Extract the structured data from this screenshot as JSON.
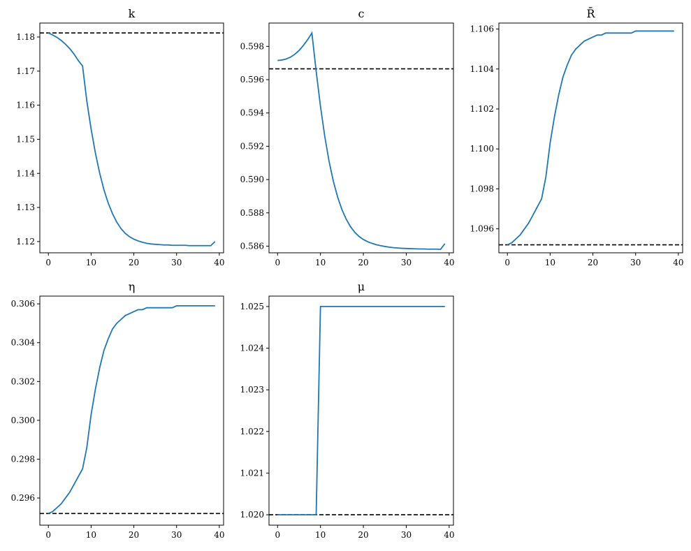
{
  "chart_data": [
    {
      "type": "line",
      "title": "k",
      "xlim": [
        -2,
        41
      ],
      "ylim": [
        1.1167,
        1.1841
      ],
      "xticks": [
        0,
        10,
        20,
        30,
        40
      ],
      "yticks": [
        1.12,
        1.13,
        1.14,
        1.15,
        1.16,
        1.17,
        1.18
      ],
      "xtick_labels": [
        "0",
        "10",
        "20",
        "30",
        "40"
      ],
      "ytick_labels": [
        "1.12",
        "1.13",
        "1.14",
        "1.15",
        "1.16",
        "1.17",
        "1.18"
      ],
      "reference": 1.1812,
      "x": [
        0,
        1,
        2,
        3,
        4,
        5,
        6,
        7,
        8,
        9,
        10,
        11,
        12,
        13,
        14,
        15,
        16,
        17,
        18,
        19,
        20,
        21,
        22,
        23,
        24,
        25,
        26,
        27,
        28,
        29,
        30,
        31,
        32,
        33,
        34,
        35,
        36,
        37,
        38,
        39
      ],
      "y": [
        1.1812,
        1.1806,
        1.1799,
        1.179,
        1.1779,
        1.1766,
        1.175,
        1.1731,
        1.1715,
        1.1612,
        1.153,
        1.146,
        1.1401,
        1.1352,
        1.1313,
        1.1282,
        1.1257,
        1.1238,
        1.1224,
        1.1214,
        1.1207,
        1.1202,
        1.1198,
        1.1195,
        1.1193,
        1.1192,
        1.1191,
        1.119,
        1.119,
        1.1189,
        1.1189,
        1.1189,
        1.1189,
        1.1188,
        1.1188,
        1.1188,
        1.1188,
        1.1188,
        1.1188,
        1.12
      ]
    },
    {
      "type": "line",
      "title": "c",
      "xlim": [
        -2,
        41
      ],
      "ylim": [
        0.5856,
        0.5994
      ],
      "xticks": [
        0,
        10,
        20,
        30,
        40
      ],
      "yticks": [
        0.586,
        0.588,
        0.59,
        0.592,
        0.594,
        0.596,
        0.598
      ],
      "xtick_labels": [
        "0",
        "10",
        "20",
        "30",
        "40"
      ],
      "ytick_labels": [
        "0.586",
        "0.588",
        "0.590",
        "0.592",
        "0.594",
        "0.596",
        "0.598"
      ],
      "reference": 0.59665,
      "x": [
        0,
        1,
        2,
        3,
        4,
        5,
        6,
        7,
        8,
        9,
        10,
        11,
        12,
        13,
        14,
        15,
        16,
        17,
        18,
        19,
        20,
        21,
        22,
        23,
        24,
        25,
        26,
        27,
        28,
        29,
        30,
        31,
        32,
        33,
        34,
        35,
        36,
        37,
        38,
        39
      ],
      "y": [
        0.59715,
        0.59718,
        0.59724,
        0.59735,
        0.59752,
        0.59775,
        0.59805,
        0.5984,
        0.5988,
        0.5965,
        0.5944,
        0.5926,
        0.5911,
        0.5899,
        0.58895,
        0.5882,
        0.58762,
        0.58717,
        0.58683,
        0.58658,
        0.5864,
        0.58627,
        0.58617,
        0.58609,
        0.58603,
        0.58598,
        0.58594,
        0.58591,
        0.58589,
        0.58587,
        0.58586,
        0.58585,
        0.58584,
        0.58583,
        0.58583,
        0.58582,
        0.58582,
        0.58582,
        0.58581,
        0.58615
      ]
    },
    {
      "type": "line",
      "title": "R̄",
      "xlim": [
        -2,
        41
      ],
      "ylim": [
        1.0948,
        1.1063
      ],
      "xticks": [
        0,
        10,
        20,
        30,
        40
      ],
      "yticks": [
        1.096,
        1.098,
        1.1,
        1.102,
        1.104,
        1.106
      ],
      "xtick_labels": [
        "0",
        "10",
        "20",
        "30",
        "40"
      ],
      "ytick_labels": [
        "1.096",
        "1.098",
        "1.100",
        "1.102",
        "1.104",
        "1.106"
      ],
      "reference": 1.0952,
      "x": [
        0,
        1,
        2,
        3,
        4,
        5,
        6,
        7,
        8,
        9,
        10,
        11,
        12,
        13,
        14,
        15,
        16,
        17,
        18,
        19,
        20,
        21,
        22,
        23,
        24,
        25,
        26,
        27,
        28,
        29,
        30,
        31,
        32,
        33,
        34,
        35,
        36,
        37,
        38,
        39
      ],
      "y": [
        1.0952,
        1.0953,
        1.0955,
        1.0957,
        1.096,
        1.0963,
        1.0967,
        1.0971,
        1.0975,
        1.0986,
        1.1003,
        1.1016,
        1.1027,
        1.1036,
        1.1042,
        1.1047,
        1.105,
        1.1052,
        1.1054,
        1.1055,
        1.1056,
        1.1057,
        1.1057,
        1.1058,
        1.1058,
        1.1058,
        1.1058,
        1.1058,
        1.1058,
        1.1058,
        1.1059,
        1.1059,
        1.1059,
        1.1059,
        1.1059,
        1.1059,
        1.1059,
        1.1059,
        1.1059,
        1.1059
      ]
    },
    {
      "type": "line",
      "title": "η",
      "xlim": [
        -2,
        41
      ],
      "ylim": [
        0.2946,
        0.3064
      ],
      "xticks": [
        0,
        10,
        20,
        30,
        40
      ],
      "yticks": [
        0.296,
        0.298,
        0.3,
        0.302,
        0.304,
        0.306
      ],
      "xtick_labels": [
        "0",
        "10",
        "20",
        "30",
        "40"
      ],
      "ytick_labels": [
        "0.296",
        "0.298",
        "0.300",
        "0.302",
        "0.304",
        "0.306"
      ],
      "reference": 0.2952,
      "x": [
        0,
        1,
        2,
        3,
        4,
        5,
        6,
        7,
        8,
        9,
        10,
        11,
        12,
        13,
        14,
        15,
        16,
        17,
        18,
        19,
        20,
        21,
        22,
        23,
        24,
        25,
        26,
        27,
        28,
        29,
        30,
        31,
        32,
        33,
        34,
        35,
        36,
        37,
        38,
        39
      ],
      "y": [
        0.2952,
        0.2953,
        0.2955,
        0.2957,
        0.296,
        0.2963,
        0.2967,
        0.2971,
        0.2975,
        0.2986,
        0.3003,
        0.3016,
        0.3027,
        0.3036,
        0.3042,
        0.3047,
        0.305,
        0.3052,
        0.3054,
        0.3055,
        0.3056,
        0.3057,
        0.3057,
        0.3058,
        0.3058,
        0.3058,
        0.3058,
        0.3058,
        0.3058,
        0.3058,
        0.3059,
        0.3059,
        0.3059,
        0.3059,
        0.3059,
        0.3059,
        0.3059,
        0.3059,
        0.3059,
        0.3059
      ]
    },
    {
      "type": "line",
      "title": "μ",
      "xlim": [
        -2,
        41
      ],
      "ylim": [
        1.01975,
        1.02525
      ],
      "xticks": [
        0,
        10,
        20,
        30,
        40
      ],
      "yticks": [
        1.02,
        1.021,
        1.022,
        1.023,
        1.024,
        1.025
      ],
      "xtick_labels": [
        "0",
        "10",
        "20",
        "30",
        "40"
      ],
      "ytick_labels": [
        "1.020",
        "1.021",
        "1.022",
        "1.023",
        "1.024",
        "1.025"
      ],
      "reference": 1.02,
      "x": [
        0,
        1,
        2,
        3,
        4,
        5,
        6,
        7,
        8,
        9,
        10,
        11,
        12,
        13,
        14,
        15,
        16,
        17,
        18,
        19,
        20,
        21,
        22,
        23,
        24,
        25,
        26,
        27,
        28,
        29,
        30,
        31,
        32,
        33,
        34,
        35,
        36,
        37,
        38,
        39
      ],
      "y": [
        1.02,
        1.02,
        1.02,
        1.02,
        1.02,
        1.02,
        1.02,
        1.02,
        1.02,
        1.02,
        1.025,
        1.025,
        1.025,
        1.025,
        1.025,
        1.025,
        1.025,
        1.025,
        1.025,
        1.025,
        1.025,
        1.025,
        1.025,
        1.025,
        1.025,
        1.025,
        1.025,
        1.025,
        1.025,
        1.025,
        1.025,
        1.025,
        1.025,
        1.025,
        1.025,
        1.025,
        1.025,
        1.025,
        1.025,
        1.025
      ]
    }
  ]
}
